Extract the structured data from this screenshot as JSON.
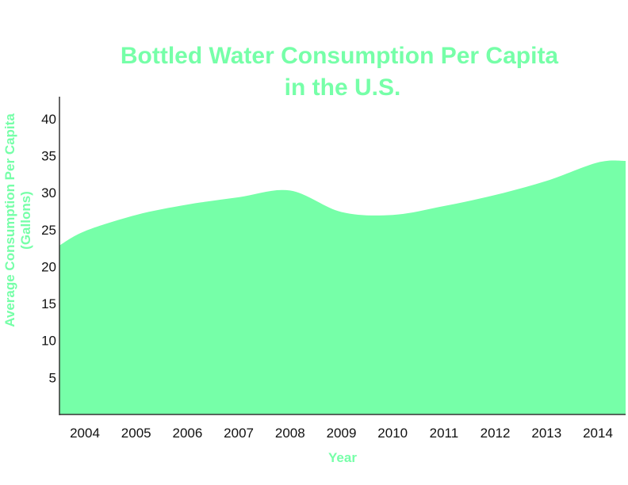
{
  "colors": {
    "area": "#76FFA8",
    "title": "#76FFA8",
    "axis": "#333333",
    "tick_text": "#111111"
  },
  "chart_data": {
    "type": "area",
    "title_lines": [
      "Bottled Water Consumption Per Capita",
      "in the U.S."
    ],
    "xlabel": "Year",
    "ylabel_lines": [
      "Average Consumption Per Capita",
      "(Gallons)"
    ],
    "categories": [
      "2004",
      "2005",
      "2006",
      "2007",
      "2008",
      "2009",
      "2010",
      "2011",
      "2012",
      "2013",
      "2014"
    ],
    "series": [
      {
        "values": [
          24.8,
          27.0,
          28.4,
          29.4,
          30.3,
          27.4,
          27.0,
          28.2,
          29.7,
          31.6,
          34.1
        ]
      }
    ],
    "yticks": [
      5,
      10,
      15,
      20,
      25,
      30,
      35,
      40
    ],
    "ylim": [
      0,
      43
    ],
    "grid": false,
    "legend": "none"
  }
}
